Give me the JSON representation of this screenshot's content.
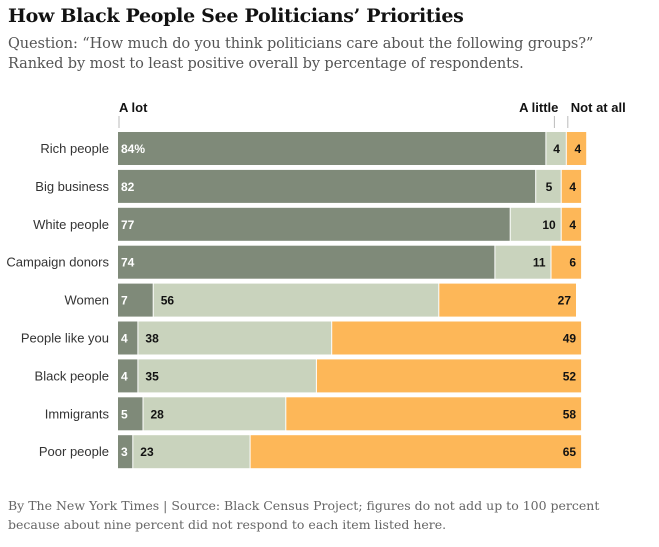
{
  "header": {
    "title": "How Black People See Politicians’ Priorities",
    "subtitle": "Question: “How much do you think politicians care about the following groups?” Ranked by most to least positive overall by percentage of respondents."
  },
  "footer": {
    "source": "By The New York Times | Source: Black Census Project; figures do not add up to 100 percent because about nine percent did not respond to each item listed here."
  },
  "chart_data": {
    "type": "bar",
    "orientation": "horizontal",
    "stacked": true,
    "categories": [
      "Rich people",
      "Big business",
      "White people",
      "Campaign donors",
      "Women",
      "People like you",
      "Black people",
      "Immigrants",
      "Poor people"
    ],
    "series": [
      {
        "name": "A lot",
        "color": "#7f8a79",
        "values": [
          84,
          82,
          77,
          74,
          7,
          4,
          4,
          5,
          3
        ]
      },
      {
        "name": "A little",
        "color": "#c9d3bd",
        "values": [
          4,
          5,
          10,
          11,
          56,
          38,
          35,
          28,
          23
        ]
      },
      {
        "name": "Not at all",
        "color": "#fdb758",
        "values": [
          4,
          4,
          4,
          6,
          27,
          49,
          52,
          58,
          65
        ]
      }
    ],
    "first_label_suffix": "%",
    "xlim": [
      0,
      100
    ],
    "legend": "top",
    "legend_labels": [
      "A lot",
      "A little",
      "Not at all"
    ]
  }
}
